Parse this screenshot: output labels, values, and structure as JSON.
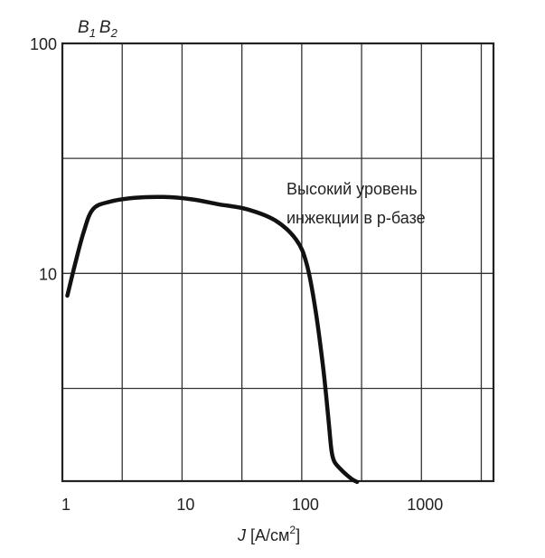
{
  "chart_data": {
    "type": "line",
    "title": "",
    "ylabel": "B₁ B₂",
    "ylabel_parts": [
      "B",
      "1",
      "B",
      "2"
    ],
    "xlabel": "J [А/см²]",
    "xlabel_parts": [
      "J",
      " [А/см",
      "2",
      "]"
    ],
    "x_scale": "log",
    "y_scale": "log",
    "xlim": [
      1,
      4000
    ],
    "ylim": [
      1.25,
      100
    ],
    "grid": true,
    "x_ticks": [
      1,
      10,
      100,
      1000
    ],
    "x_tick_labels": [
      "1",
      "10",
      "100",
      "1000"
    ],
    "y_ticks": [
      10,
      100
    ],
    "y_tick_labels": [
      "10",
      "100"
    ],
    "annotations": [
      {
        "lines": [
          "Высокий уровень",
          "инжекции в p-базе"
        ],
        "x": 120,
        "y": 25
      }
    ],
    "series": [
      {
        "x": [
          1.1,
          1.25,
          1.5,
          1.8,
          2.5,
          4,
          7,
          12,
          20,
          35,
          60,
          90,
          110,
          130,
          150,
          165,
          175,
          180,
          190,
          220,
          260,
          290
        ],
        "y": [
          8,
          10.5,
          15,
          19,
          20.5,
          21.3,
          21.5,
          21,
          20,
          19,
          17,
          14,
          11,
          7,
          4,
          2.5,
          1.8,
          1.62,
          1.5,
          1.38,
          1.28,
          1.24
        ]
      }
    ]
  }
}
